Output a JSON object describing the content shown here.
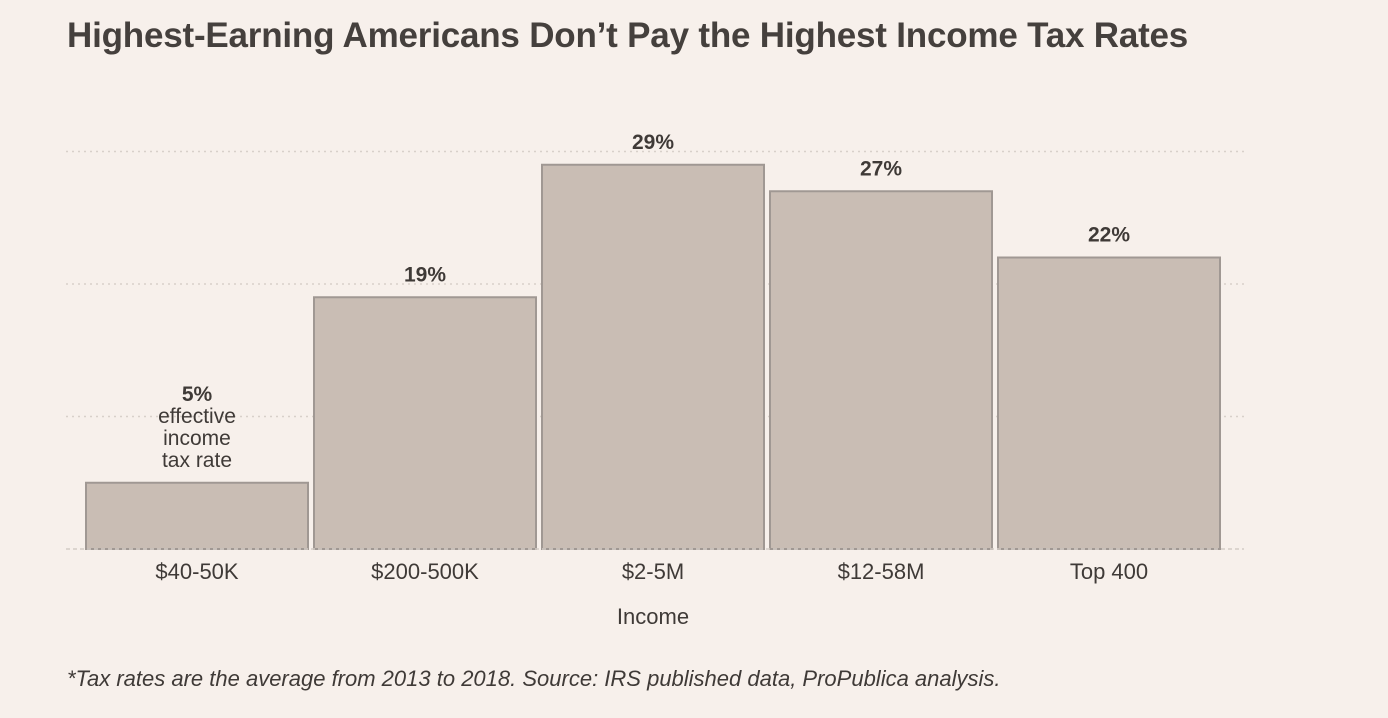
{
  "chart_data": {
    "type": "bar",
    "title": "Highest-Earning Americans Don’t Pay the Highest Income Tax Rates",
    "categories": [
      "$40-50K",
      "$200-500K",
      "$2-5M",
      "$12-58M",
      "Top 400"
    ],
    "values": [
      5,
      19,
      29,
      27,
      22
    ],
    "value_labels": [
      "5%",
      "19%",
      "29%",
      "27%",
      "22%"
    ],
    "first_bar_note": [
      "effective",
      "income",
      "tax rate"
    ],
    "xlabel": "Income",
    "ylabel": "",
    "ylim": [
      0,
      30
    ],
    "grid": true,
    "grid_values": [
      10,
      20,
      30
    ],
    "bar_color": "#c9bdb4",
    "bar_border_color": "#a09893",
    "footnote": "*Tax rates are the average from 2013 to 2018. Source: IRS published data, ProPublica analysis."
  }
}
